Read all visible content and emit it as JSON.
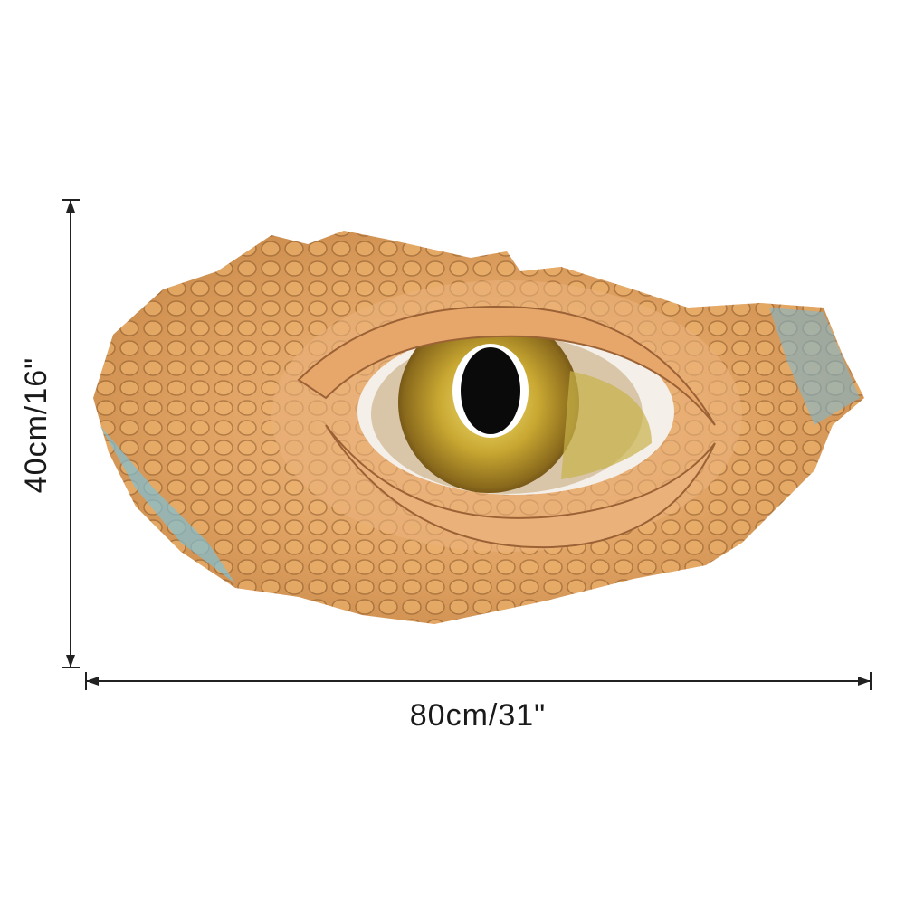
{
  "dimensions": {
    "height": "40cm/16\"",
    "width": "80cm/31\""
  }
}
